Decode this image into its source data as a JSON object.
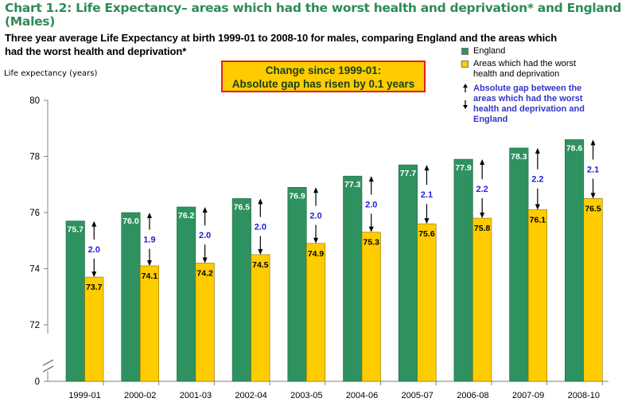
{
  "header": {
    "title_line1": "Chart 1.2: Life Expectancy– areas which had the worst health and deprivation* and England",
    "title_line2": "(Males)",
    "subtitle_line1": "Three year average Life Expectancy at birth 1999-01 to 2008-10 for males, comparing England and the areas which",
    "subtitle_line2": "had the worst health and deprivation*"
  },
  "callout": {
    "line1": "Change since 1999-01:",
    "line2": "Absolute gap has risen by 0.1 years"
  },
  "legend": {
    "england": "England",
    "areas_line1": "Areas which had the worst",
    "areas_line2": "health and deprivation",
    "gap_line1": "Absolute gap between the",
    "gap_line2": "areas which had the worst",
    "gap_line3": "health and deprivation and",
    "gap_line4": "England"
  },
  "colors": {
    "england": "#2e9160",
    "areas": "#ffcc00",
    "gap_text": "#1f1fd6",
    "title": "#2e8b57"
  },
  "chart_data": {
    "type": "bar",
    "title": "Chart 1.2: Life Expectancy– areas which had the worst health and deprivation* and England (Males)",
    "ylabel": "Life expectancy (years)",
    "xlabel": "",
    "ylim": [
      72,
      80
    ],
    "axis_break": true,
    "yticks": [
      0,
      72,
      74,
      76,
      78,
      80
    ],
    "grid": false,
    "legend_position": "top-right",
    "categories": [
      "1999-01",
      "2000-02",
      "2001-03",
      "2002-04",
      "2003-05",
      "2004-06",
      "2005-07",
      "2006-08",
      "2007-09",
      "2008-10"
    ],
    "series": [
      {
        "name": "England",
        "values": [
          75.7,
          76.0,
          76.2,
          76.5,
          76.9,
          77.3,
          77.7,
          77.9,
          78.3,
          78.6
        ]
      },
      {
        "name": "Areas which had the worst health and deprivation",
        "values": [
          73.7,
          74.1,
          74.2,
          74.5,
          74.9,
          75.3,
          75.6,
          75.8,
          76.1,
          76.5
        ]
      }
    ],
    "gap_labels": [
      "2.0",
      "1.9",
      "2.0",
      "2.0",
      "2.0",
      "2.0",
      "2.1",
      "2.2",
      "2.2",
      "2.1"
    ],
    "value_labels_england": [
      "75.7",
      "76.0",
      "76.2",
      "76.5",
      "76.9",
      "77.3",
      "77.7",
      "77.9",
      "78.3",
      "78.6"
    ],
    "value_labels_areas": [
      "73.7",
      "74.1",
      "74.2",
      "74.5",
      "74.9",
      "75.3",
      "75.6",
      "75.8",
      "76.1",
      "76.5"
    ]
  }
}
